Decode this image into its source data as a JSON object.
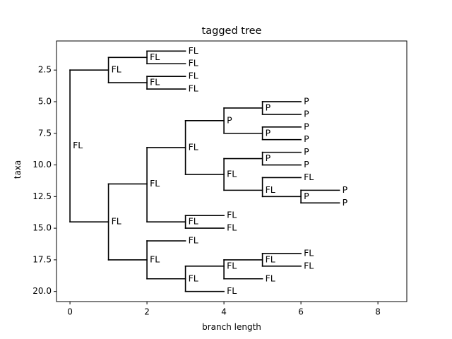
{
  "chart_data": {
    "type": "tree",
    "title": "tagged tree",
    "xlabel": "branch length",
    "ylabel": "taxa",
    "xlim": [
      -0.35,
      8.75
    ],
    "ylim": [
      20.8,
      0.2
    ],
    "y_inverted": true,
    "xticks": [
      0,
      2,
      4,
      6,
      8
    ],
    "xtick_labels": [
      "0",
      "2",
      "4",
      "6",
      "8"
    ],
    "yticks": [
      2.5,
      5.0,
      7.5,
      10.0,
      12.5,
      15.0,
      17.5,
      20.0
    ],
    "ytick_labels": [
      "2.5",
      "5.0",
      "7.5",
      "10.0",
      "12.5",
      "15.0",
      "17.5",
      "20.0"
    ],
    "grid": false,
    "line_color": "#000000",
    "nodes": [
      {
        "id": "n0",
        "x": 0,
        "y": 8.5,
        "label": "FL",
        "children_y": [
          2.5,
          14.5
        ]
      },
      {
        "id": "n1",
        "x": 1,
        "y": 2.5,
        "label": "FL",
        "children_y": [
          1.5,
          3.5
        ]
      },
      {
        "id": "n2",
        "x": 2,
        "y": 1.5,
        "label": "FL",
        "children_y": [
          1,
          2
        ]
      },
      {
        "id": "n3",
        "x": 2,
        "y": 3.5,
        "label": "FL",
        "children_y": [
          3,
          4
        ]
      },
      {
        "id": "n4",
        "x": 1,
        "y": 14.5,
        "label": "FL",
        "children_y": [
          11.5,
          17.5
        ]
      },
      {
        "id": "n5",
        "x": 2,
        "y": 11.5,
        "label": "FL",
        "children_y": [
          8.625,
          14.5
        ]
      },
      {
        "id": "n6",
        "x": 3,
        "y": 8.625,
        "label": "FL",
        "children_y": [
          6.5,
          10.75
        ]
      },
      {
        "id": "n7",
        "x": 4,
        "y": 6.5,
        "label": "P",
        "children_y": [
          5.5,
          7.5
        ]
      },
      {
        "id": "n8",
        "x": 5,
        "y": 5.5,
        "label": "P",
        "children_y": [
          5,
          6
        ]
      },
      {
        "id": "n9",
        "x": 5,
        "y": 7.5,
        "label": "P",
        "children_y": [
          7,
          8
        ]
      },
      {
        "id": "n10",
        "x": 4,
        "y": 10.75,
        "label": "FL",
        "children_y": [
          9.5,
          12
        ]
      },
      {
        "id": "n11",
        "x": 5,
        "y": 9.5,
        "label": "P",
        "children_y": [
          9,
          10
        ]
      },
      {
        "id": "n12",
        "x": 5,
        "y": 12,
        "label": "FL",
        "children_y": [
          11,
          12.5
        ]
      },
      {
        "id": "n13",
        "x": 6,
        "y": 12.5,
        "label": "P",
        "children_y": [
          12,
          13
        ]
      },
      {
        "id": "n14",
        "x": 3,
        "y": 14.5,
        "label": "FL",
        "children_y": [
          14,
          15
        ]
      },
      {
        "id": "n15",
        "x": 2,
        "y": 17.5,
        "label": "FL",
        "children_y": [
          16,
          19
        ]
      },
      {
        "id": "n16",
        "x": 3,
        "y": 19,
        "label": "FL",
        "children_y": [
          18,
          20
        ]
      },
      {
        "id": "n17",
        "x": 4,
        "y": 18,
        "label": "FL",
        "children_y": [
          17.5,
          19
        ]
      },
      {
        "id": "n18",
        "x": 5,
        "y": 17.5,
        "label": "FL",
        "children_y": [
          17,
          18
        ]
      }
    ],
    "leaves": [
      {
        "x": 3,
        "y": 1,
        "label": "FL"
      },
      {
        "x": 3,
        "y": 2,
        "label": "FL"
      },
      {
        "x": 3,
        "y": 3,
        "label": "FL"
      },
      {
        "x": 3,
        "y": 4,
        "label": "FL"
      },
      {
        "x": 6,
        "y": 5,
        "label": "P"
      },
      {
        "x": 6,
        "y": 6,
        "label": "P"
      },
      {
        "x": 6,
        "y": 7,
        "label": "P"
      },
      {
        "x": 6,
        "y": 8,
        "label": "P"
      },
      {
        "x": 6,
        "y": 9,
        "label": "P"
      },
      {
        "x": 6,
        "y": 10,
        "label": "P"
      },
      {
        "x": 6,
        "y": 11,
        "label": "FL"
      },
      {
        "x": 7,
        "y": 12,
        "label": "P"
      },
      {
        "x": 7,
        "y": 13,
        "label": "P"
      },
      {
        "x": 4,
        "y": 14,
        "label": "FL"
      },
      {
        "x": 4,
        "y": 15,
        "label": "FL"
      },
      {
        "x": 3,
        "y": 16,
        "label": "FL"
      },
      {
        "x": 6,
        "y": 17,
        "label": "FL"
      },
      {
        "x": 6,
        "y": 18,
        "label": "FL"
      },
      {
        "x": 5,
        "y": 19,
        "label": "FL"
      },
      {
        "x": 4,
        "y": 20,
        "label": "FL"
      }
    ],
    "branches": [
      {
        "from": [
          0,
          2.5
        ],
        "to": [
          1,
          2.5
        ]
      },
      {
        "from": [
          0,
          14.5
        ],
        "to": [
          1,
          14.5
        ]
      },
      {
        "from": [
          1,
          1.5
        ],
        "to": [
          2,
          1.5
        ]
      },
      {
        "from": [
          1,
          3.5
        ],
        "to": [
          2,
          3.5
        ]
      },
      {
        "from": [
          2,
          1
        ],
        "to": [
          3,
          1
        ]
      },
      {
        "from": [
          2,
          2
        ],
        "to": [
          3,
          2
        ]
      },
      {
        "from": [
          2,
          3
        ],
        "to": [
          3,
          3
        ]
      },
      {
        "from": [
          2,
          4
        ],
        "to": [
          3,
          4
        ]
      },
      {
        "from": [
          1,
          11.5
        ],
        "to": [
          2,
          11.5
        ]
      },
      {
        "from": [
          1,
          17.5
        ],
        "to": [
          2,
          17.5
        ]
      },
      {
        "from": [
          2,
          8.625
        ],
        "to": [
          3,
          8.625
        ]
      },
      {
        "from": [
          2,
          14.5
        ],
        "to": [
          3,
          14.5
        ]
      },
      {
        "from": [
          3,
          6.5
        ],
        "to": [
          4,
          6.5
        ]
      },
      {
        "from": [
          3,
          10.75
        ],
        "to": [
          4,
          10.75
        ]
      },
      {
        "from": [
          4,
          5.5
        ],
        "to": [
          5,
          5.5
        ]
      },
      {
        "from": [
          4,
          7.5
        ],
        "to": [
          5,
          7.5
        ]
      },
      {
        "from": [
          5,
          5
        ],
        "to": [
          6,
          5
        ]
      },
      {
        "from": [
          5,
          6
        ],
        "to": [
          6,
          6
        ]
      },
      {
        "from": [
          5,
          7
        ],
        "to": [
          6,
          7
        ]
      },
      {
        "from": [
          5,
          8
        ],
        "to": [
          6,
          8
        ]
      },
      {
        "from": [
          4,
          9.5
        ],
        "to": [
          5,
          9.5
        ]
      },
      {
        "from": [
          4,
          12
        ],
        "to": [
          5,
          12
        ]
      },
      {
        "from": [
          5,
          9
        ],
        "to": [
          6,
          9
        ]
      },
      {
        "from": [
          5,
          10
        ],
        "to": [
          6,
          10
        ]
      },
      {
        "from": [
          5,
          11
        ],
        "to": [
          6,
          11
        ]
      },
      {
        "from": [
          5,
          12.5
        ],
        "to": [
          6,
          12.5
        ]
      },
      {
        "from": [
          6,
          12
        ],
        "to": [
          7,
          12
        ]
      },
      {
        "from": [
          6,
          13
        ],
        "to": [
          7,
          13
        ]
      },
      {
        "from": [
          3,
          14
        ],
        "to": [
          4,
          14
        ]
      },
      {
        "from": [
          3,
          15
        ],
        "to": [
          4,
          15
        ]
      },
      {
        "from": [
          2,
          16
        ],
        "to": [
          3,
          16
        ]
      },
      {
        "from": [
          2,
          19
        ],
        "to": [
          3,
          19
        ]
      },
      {
        "from": [
          3,
          18
        ],
        "to": [
          4,
          18
        ]
      },
      {
        "from": [
          3,
          20
        ],
        "to": [
          4,
          20
        ]
      },
      {
        "from": [
          4,
          17.5
        ],
        "to": [
          5,
          17.5
        ]
      },
      {
        "from": [
          4,
          19
        ],
        "to": [
          5,
          19
        ]
      },
      {
        "from": [
          5,
          17
        ],
        "to": [
          6,
          17
        ]
      },
      {
        "from": [
          5,
          18
        ],
        "to": [
          6,
          18
        ]
      }
    ]
  }
}
